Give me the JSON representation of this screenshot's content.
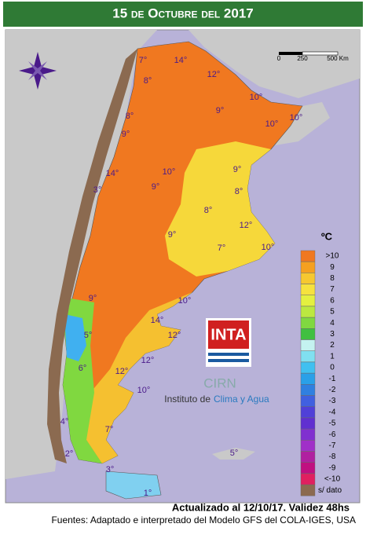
{
  "header": {
    "title": "15 de Octubre del 2017"
  },
  "scale": {
    "labels": [
      "0",
      "250",
      "500 Km"
    ]
  },
  "map_labels": [
    "7°",
    "14°",
    "12°",
    "8°",
    "10°",
    "9°",
    "8°",
    "10°",
    "10°",
    "9°",
    "14°",
    "10°",
    "9°",
    "3°",
    "9°",
    "8°",
    "8°",
    "12°",
    "9°",
    "7°",
    "10°",
    "9°",
    "10°",
    "14°",
    "5°",
    "12°",
    "12°",
    "6°",
    "12°",
    "10°",
    "4°",
    "7°",
    "2°",
    "5°",
    "3°",
    "1°"
  ],
  "legend": {
    "unit": "ºC",
    "items": [
      {
        "label": ">10",
        "color": "#f07820"
      },
      {
        "label": "9",
        "color": "#f5a020"
      },
      {
        "label": "8",
        "color": "#f6c830"
      },
      {
        "label": "7",
        "color": "#f6e23e"
      },
      {
        "label": "6",
        "color": "#e4f040"
      },
      {
        "label": "5",
        "color": "#bce840"
      },
      {
        "label": "4",
        "color": "#80d840"
      },
      {
        "label": "3",
        "color": "#40c040"
      },
      {
        "label": "2",
        "color": "#c4f2f0"
      },
      {
        "label": "1",
        "color": "#80e0f0"
      },
      {
        "label": "0",
        "color": "#40c0f0"
      },
      {
        "label": "-1",
        "color": "#2aa0e8"
      },
      {
        "label": "-2",
        "color": "#3080e0"
      },
      {
        "label": "-3",
        "color": "#4060e0"
      },
      {
        "label": "-4",
        "color": "#5040d8"
      },
      {
        "label": "-5",
        "color": "#6030d0"
      },
      {
        "label": "-6",
        "color": "#8030d0"
      },
      {
        "label": "-7",
        "color": "#a030c8"
      },
      {
        "label": "-8",
        "color": "#b020a0"
      },
      {
        "label": "-9",
        "color": "#c01080"
      },
      {
        "label": "<-10",
        "color": "#e02060"
      },
      {
        "label": "s/ dato",
        "color": "#8b6a50"
      }
    ]
  },
  "logo": {
    "inta": "INTA",
    "cirn": "CIRN",
    "institute_prefix": "Instituto de",
    "institute_name": "Clima y Agua"
  },
  "updated": "Actualizado al 12/10/17. Validez 48hs",
  "footer": "Fuentes: Adaptado e interpretado del Modelo GFS del COLA-IGES, USA"
}
